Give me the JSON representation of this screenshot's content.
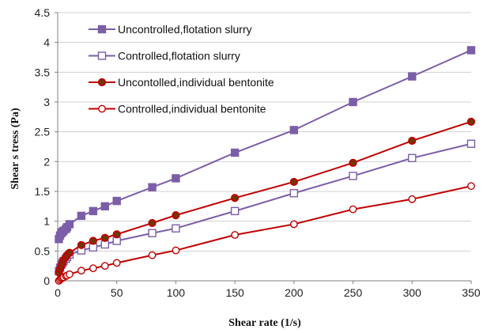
{
  "chart_data": {
    "type": "line",
    "title": "",
    "xlabel": "Shear rate (1/s)",
    "ylabel": "Shear s tress (Pa)",
    "xlim": [
      0,
      350
    ],
    "ylim": [
      0,
      4.5
    ],
    "xticks": [
      0,
      50,
      100,
      150,
      200,
      250,
      300,
      350
    ],
    "yticks": [
      0,
      0.5,
      1,
      1.5,
      2,
      2.5,
      3,
      3.5,
      4,
      4.5
    ],
    "xtick_labels": [
      "0",
      "50",
      "100",
      "150",
      "200",
      "250",
      "300",
      "350"
    ],
    "ytick_labels": [
      "0",
      "0.5",
      "1",
      "1.5",
      "2",
      "2.5",
      "3",
      "3.5",
      "4",
      "4.5"
    ],
    "grid": "horizontal",
    "legend_position": "top-left",
    "series": [
      {
        "name": "Uncontrolled,flotation slurry",
        "color": "#7b5ea7",
        "marker": "square-filled",
        "x": [
          1,
          2,
          3,
          4,
          5,
          7,
          8,
          10,
          20,
          30,
          40,
          50,
          80,
          100,
          150,
          200,
          250,
          300,
          350
        ],
        "y": [
          0.7,
          0.76,
          0.8,
          0.82,
          0.84,
          0.87,
          0.9,
          0.95,
          1.09,
          1.17,
          1.25,
          1.34,
          1.57,
          1.72,
          2.15,
          2.53,
          3.0,
          3.43,
          3.87
        ]
      },
      {
        "name": "Controlled,flotation slurry",
        "color": "#7b5ea7",
        "marker": "square-open",
        "x": [
          1,
          2,
          3,
          4,
          5,
          7,
          8,
          10,
          20,
          30,
          40,
          50,
          80,
          100,
          150,
          200,
          250,
          300,
          350
        ],
        "y": [
          0.16,
          0.22,
          0.27,
          0.3,
          0.33,
          0.37,
          0.4,
          0.44,
          0.51,
          0.56,
          0.61,
          0.67,
          0.8,
          0.88,
          1.17,
          1.47,
          1.76,
          2.06,
          2.3
        ]
      },
      {
        "name": "Uncontolled,individual bentonite",
        "color": "#c00000",
        "marker": "circle-filled",
        "x": [
          1,
          2,
          3,
          4,
          5,
          7,
          8,
          10,
          20,
          30,
          40,
          50,
          80,
          100,
          150,
          200,
          250,
          300,
          350
        ],
        "y": [
          0.14,
          0.2,
          0.25,
          0.3,
          0.35,
          0.4,
          0.43,
          0.47,
          0.6,
          0.67,
          0.72,
          0.78,
          0.97,
          1.1,
          1.39,
          1.66,
          1.98,
          2.35,
          2.67
        ]
      },
      {
        "name": "Controlled,individual bentonite",
        "color": "#c00000",
        "marker": "circle-open",
        "x": [
          1,
          2,
          3,
          4,
          5,
          7,
          8,
          10,
          20,
          30,
          40,
          50,
          80,
          100,
          150,
          200,
          250,
          300,
          350
        ],
        "y": [
          0.0,
          0.02,
          0.04,
          0.05,
          0.06,
          0.08,
          0.09,
          0.11,
          0.17,
          0.21,
          0.25,
          0.3,
          0.43,
          0.51,
          0.77,
          0.95,
          1.2,
          1.37,
          1.59
        ]
      }
    ]
  }
}
